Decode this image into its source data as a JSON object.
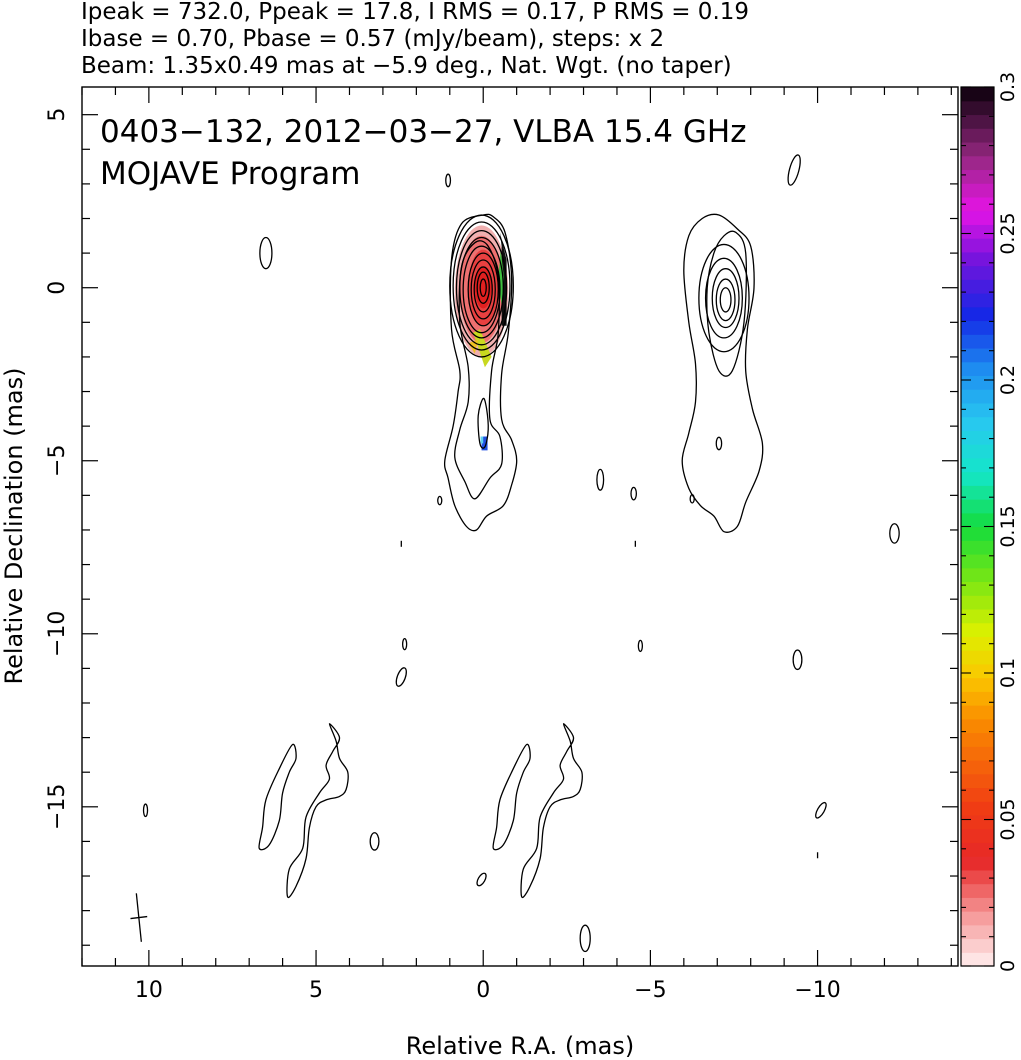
{
  "header": {
    "line1": "Ipeak = 732.0, Ppeak = 17.8, I RMS = 0.17, P RMS = 0.19",
    "line2": "Ibase = 0.70, Pbase = 0.57 (mJy/beam), steps: x 2",
    "line3": "Beam: 1.35x0.49 mas at −5.9 deg., Nat. Wgt. (no taper)"
  },
  "chart_data": {
    "type": "contour",
    "xlabel": "Relative R.A. (mas)",
    "ylabel": "Relative Declination (mas)",
    "xlim": [
      12,
      -14.2
    ],
    "ylim": [
      -19.6,
      5.8
    ],
    "x_ticks": [
      10,
      5,
      0,
      -5,
      -10
    ],
    "x_tick_labels": [
      "10",
      "5",
      "0",
      "−5",
      "−10"
    ],
    "y_ticks": [
      5,
      0,
      -5,
      -10,
      -15
    ],
    "y_tick_labels": [
      "5",
      "0",
      "−5",
      "−10",
      "−15"
    ],
    "annotations": [
      "0403−132, 2012−03−27, VLBA 15.4 GHz",
      "MOJAVE Program"
    ],
    "colorbar": {
      "range": [
        0,
        0.3
      ],
      "ticks": [
        0,
        0.05,
        0.1,
        0.15,
        0.2,
        0.25,
        0.3
      ],
      "tick_labels": [
        "0",
        "0.05",
        "0.1",
        "0.15",
        "0.2",
        "0.25",
        "0.3"
      ]
    },
    "core": {
      "x": 0,
      "y": 0
    },
    "core_contours": [
      {
        "x": 0.05,
        "y": 0.05,
        "rx": 0.95,
        "ry": 2.05
      },
      {
        "x": 0.05,
        "y": 0.05,
        "rx": 0.85,
        "ry": 1.85
      },
      {
        "x": 0.05,
        "y": 0.0,
        "rx": 0.75,
        "ry": 1.65
      },
      {
        "x": 0.05,
        "y": 0.0,
        "rx": 0.65,
        "ry": 1.45
      },
      {
        "x": 0.05,
        "y": -0.05,
        "rx": 0.55,
        "ry": 1.25
      },
      {
        "x": 0.0,
        "y": -0.05,
        "rx": 0.45,
        "ry": 1.05
      },
      {
        "x": 0.0,
        "y": -0.05,
        "rx": 0.36,
        "ry": 0.85
      },
      {
        "x": 0.0,
        "y": -0.05,
        "rx": 0.27,
        "ry": 0.65
      },
      {
        "x": 0.0,
        "y": 0.0,
        "rx": 0.18,
        "ry": 0.45
      },
      {
        "x": 0.0,
        "y": 0.0,
        "rx": 0.09,
        "ry": 0.25
      }
    ],
    "pol_core_contours": [
      {
        "x": -7.2,
        "y": -0.3,
        "rx": 0.75,
        "ry": 1.55
      },
      {
        "x": -7.2,
        "y": -0.3,
        "rx": 0.55,
        "ry": 1.15
      },
      {
        "x": -7.25,
        "y": -0.3,
        "rx": 0.4,
        "ry": 0.85
      },
      {
        "x": -7.25,
        "y": -0.35,
        "rx": 0.28,
        "ry": 0.6
      },
      {
        "x": -7.25,
        "y": -0.35,
        "rx": 0.16,
        "ry": 0.35
      }
    ],
    "outer_contour_total": [
      [
        0,
        2.1
      ],
      [
        0.65,
        1.85
      ],
      [
        0.95,
        0.8
      ],
      [
        0.95,
        -1.2
      ],
      [
        0.7,
        -2.4
      ],
      [
        0.75,
        -3.0
      ],
      [
        0.9,
        -4.0
      ],
      [
        1.15,
        -5.0
      ],
      [
        1.05,
        -5.5
      ],
      [
        0.85,
        -6.3
      ],
      [
        0.5,
        -6.9
      ],
      [
        0.2,
        -7.0
      ],
      [
        -0.1,
        -6.6
      ],
      [
        -0.6,
        -6.3
      ],
      [
        -0.85,
        -5.7
      ],
      [
        -1.0,
        -5.0
      ],
      [
        -0.85,
        -4.4
      ],
      [
        -0.55,
        -3.8
      ],
      [
        -0.55,
        -2.5
      ],
      [
        -0.75,
        -1.3
      ],
      [
        -0.85,
        0.3
      ],
      [
        -0.65,
        1.6
      ],
      [
        -0.3,
        2.05
      ],
      [
        0,
        2.1
      ]
    ],
    "outer_contour_pol": [
      [
        -7.05,
        2.1
      ],
      [
        -7.6,
        1.7
      ],
      [
        -8.0,
        1.2
      ],
      [
        -8.1,
        0.0
      ],
      [
        -7.9,
        -1.2
      ],
      [
        -7.85,
        -2.4
      ],
      [
        -8.05,
        -3.5
      ],
      [
        -8.35,
        -4.5
      ],
      [
        -8.25,
        -5.3
      ],
      [
        -7.85,
        -6.2
      ],
      [
        -7.6,
        -6.9
      ],
      [
        -7.2,
        -7.05
      ],
      [
        -6.9,
        -6.6
      ],
      [
        -6.5,
        -6.3
      ],
      [
        -6.15,
        -5.8
      ],
      [
        -5.95,
        -5.0
      ],
      [
        -6.15,
        -4.2
      ],
      [
        -6.35,
        -3.3
      ],
      [
        -6.35,
        -2.2
      ],
      [
        -6.15,
        -1.0
      ],
      [
        -6.0,
        0.5
      ],
      [
        -6.15,
        1.5
      ],
      [
        -6.55,
        2.0
      ],
      [
        -7.05,
        2.1
      ]
    ],
    "second_contour_total": [
      [
        0.25,
        1.3
      ],
      [
        0.65,
        0.6
      ],
      [
        0.7,
        -1.0
      ],
      [
        0.45,
        -2.3
      ],
      [
        0.45,
        -3.3
      ],
      [
        0.7,
        -4.1
      ],
      [
        0.85,
        -4.9
      ],
      [
        0.55,
        -5.6
      ],
      [
        0.25,
        -6.1
      ],
      [
        -0.2,
        -5.5
      ],
      [
        -0.55,
        -5.1
      ],
      [
        -0.5,
        -4.3
      ],
      [
        -0.2,
        -3.8
      ],
      [
        -0.25,
        -2.4
      ],
      [
        -0.45,
        -1.3
      ],
      [
        -0.45,
        0.3
      ],
      [
        -0.15,
        1.2
      ],
      [
        0.25,
        1.3
      ]
    ],
    "second_contour_pol": [
      [
        -7.55,
        1.6
      ],
      [
        -7.85,
        1.0
      ],
      [
        -7.8,
        -1.0
      ],
      [
        -7.45,
        -2.4
      ],
      [
        -7.05,
        -2.4
      ],
      [
        -6.75,
        -1.3
      ],
      [
        -6.7,
        0.0
      ],
      [
        -6.9,
        1.0
      ],
      [
        -7.2,
        1.5
      ],
      [
        -7.55,
        1.6
      ]
    ],
    "inner_knot_total": [
      [
        0.0,
        -3.2
      ],
      [
        0.15,
        -3.7
      ],
      [
        0.1,
        -4.5
      ],
      [
        -0.05,
        -4.6
      ],
      [
        -0.15,
        -4.1
      ],
      [
        -0.1,
        -3.5
      ],
      [
        0.0,
        -3.2
      ]
    ],
    "sidelobe_shape": [
      [
        4.6,
        -12.6
      ],
      [
        4.3,
        -13.0
      ],
      [
        4.5,
        -13.4
      ],
      [
        4.7,
        -13.8
      ],
      [
        4.6,
        -14.2
      ],
      [
        4.9,
        -14.6
      ],
      [
        5.3,
        -15.3
      ],
      [
        5.4,
        -16.2
      ],
      [
        5.8,
        -16.8
      ],
      [
        5.85,
        -17.6
      ],
      [
        5.6,
        -17.3
      ],
      [
        5.3,
        -16.5
      ],
      [
        5.2,
        -15.6
      ],
      [
        5.0,
        -15.0
      ],
      [
        4.7,
        -14.8
      ],
      [
        4.3,
        -14.7
      ],
      [
        4.1,
        -14.5
      ],
      [
        4.05,
        -14.0
      ],
      [
        4.3,
        -13.6
      ],
      [
        4.4,
        -13.1
      ],
      [
        4.6,
        -12.6
      ]
    ],
    "sidelobe_shape2": [
      [
        5.7,
        -13.2
      ],
      [
        6.1,
        -13.9
      ],
      [
        6.5,
        -14.8
      ],
      [
        6.6,
        -15.6
      ],
      [
        6.7,
        -16.2
      ],
      [
        6.4,
        -16.1
      ],
      [
        6.1,
        -15.4
      ],
      [
        6.0,
        -14.6
      ],
      [
        5.8,
        -14.0
      ],
      [
        5.6,
        -13.6
      ],
      [
        5.7,
        -13.2
      ]
    ],
    "sidelobe_offsets_x": [
      0,
      -7.0
    ],
    "noise_blobs": [
      {
        "x": 6.5,
        "y": 1.0,
        "rx": 0.18,
        "ry": 0.45,
        "rot": 0
      },
      {
        "x": 1.05,
        "y": 3.1,
        "rx": 0.07,
        "ry": 0.18,
        "rot": 0
      },
      {
        "x": -9.3,
        "y": 3.4,
        "rx": 0.14,
        "ry": 0.45,
        "rot": 15
      },
      {
        "x": 1.3,
        "y": -6.15,
        "rx": 0.06,
        "ry": 0.12,
        "rot": 0
      },
      {
        "x": -3.5,
        "y": -5.55,
        "rx": 0.1,
        "ry": 0.3,
        "rot": 0
      },
      {
        "x": -4.5,
        "y": -5.95,
        "rx": 0.08,
        "ry": 0.18,
        "rot": 0
      },
      {
        "x": -7.05,
        "y": -4.5,
        "rx": 0.08,
        "ry": 0.18,
        "rot": 0
      },
      {
        "x": -6.25,
        "y": -6.1,
        "rx": 0.06,
        "ry": 0.12,
        "rot": 0
      },
      {
        "x": 2.35,
        "y": -10.3,
        "rx": 0.06,
        "ry": 0.16,
        "rot": 0
      },
      {
        "x": 2.45,
        "y": -11.25,
        "rx": 0.12,
        "ry": 0.28,
        "rot": 20
      },
      {
        "x": -4.7,
        "y": -10.35,
        "rx": 0.06,
        "ry": 0.16,
        "rot": 0
      },
      {
        "x": -9.4,
        "y": -10.75,
        "rx": 0.13,
        "ry": 0.28,
        "rot": 0
      },
      {
        "x": 10.1,
        "y": -15.1,
        "rx": 0.06,
        "ry": 0.18,
        "rot": 0
      },
      {
        "x": 3.25,
        "y": -16.0,
        "rx": 0.13,
        "ry": 0.25,
        "rot": 0
      },
      {
        "x": 0.05,
        "y": -17.1,
        "rx": 0.1,
        "ry": 0.2,
        "rot": 30
      },
      {
        "x": -3.05,
        "y": -18.8,
        "rx": 0.15,
        "ry": 0.38,
        "rot": 0
      },
      {
        "x": -10.1,
        "y": -15.1,
        "rx": 0.1,
        "ry": 0.25,
        "rot": 30
      },
      {
        "x": -12.3,
        "y": -7.1,
        "rx": 0.14,
        "ry": 0.28,
        "rot": 0
      }
    ],
    "noise_marks": [
      {
        "x": 2.45,
        "y": -7.4
      },
      {
        "x": -4.55,
        "y": -7.4
      },
      {
        "x": -10.0,
        "y": -16.4
      }
    ],
    "beam_cross": {
      "x": 10.3,
      "y": -18.2
    }
  }
}
